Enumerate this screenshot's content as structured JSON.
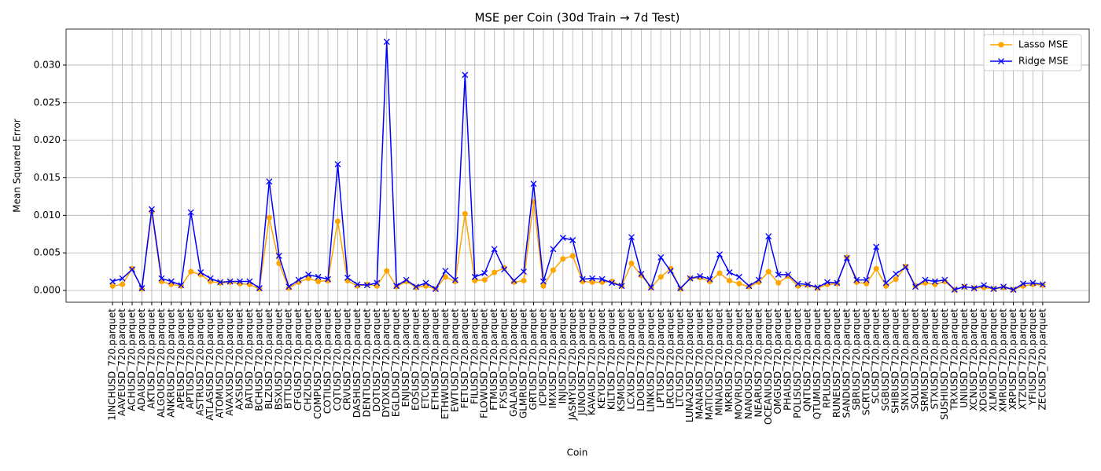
{
  "chart_data": {
    "type": "line",
    "title": "MSE per Coin (30d Train → 7d Test)",
    "x_label": "Coin",
    "y_label": "Mean Squared Error",
    "categories": [
      "1INCHUSD_720.parquet",
      "AAVEUSD_720.parquet",
      "ACHUSD_720.parquet",
      "ADAUSD_720.parquet",
      "AKTUSD_720.parquet",
      "ALGOUSD_720.parquet",
      "ANKRUSD_720.parquet",
      "APEUSD_720.parquet",
      "APTUSD_720.parquet",
      "ASTRUSD_720.parquet",
      "ATLASUSD_720.parquet",
      "ATOMUSD_720.parquet",
      "AVAXUSD_720.parquet",
      "AXSUSD_720.parquet",
      "BATUSD_720.parquet",
      "BCHUSD_720.parquet",
      "BLZUSD_720.parquet",
      "BSXUSD_720.parquet",
      "BTTUSD_720.parquet",
      "CFGUSD_720.parquet",
      "CHZUSD_720.parquet",
      "COMPUSD_720.parquet",
      "COTIUSD_720.parquet",
      "CQTUSD_720.parquet",
      "CRVUSD_720.parquet",
      "DASHUSD_720.parquet",
      "DENTUSD_720.parquet",
      "DOTUSD_720.parquet",
      "DYDXUSD_720.parquet",
      "EGLDUSD_720.parquet",
      "ENJUSD_720.parquet",
      "EOSUSD_720.parquet",
      "ETCUSD_720.parquet",
      "ETHUSD_720.parquet",
      "ETHWUSD_720.parquet",
      "EWTUSD_720.parquet",
      "FETUSD_720.parquet",
      "FILUSD_720.parquet",
      "FLOWUSD_720.parquet",
      "FTMUSD_720.parquet",
      "FXSUSD_720.parquet",
      "GALAUSD_720.parquet",
      "GLMRUSD_720.parquet",
      "GRTUSD_720.parquet",
      "ICPUSD_720.parquet",
      "IMXUSD_720.parquet",
      "INJUSD_720.parquet",
      "JASMYUSD_720.parquet",
      "JUNOUSD_720.parquet",
      "KAVAUSD_720.parquet",
      "KEYUSD_720.parquet",
      "KILTUSD_720.parquet",
      "KSMUSD_720.parquet",
      "LCXUSD_720.parquet",
      "LDOUSD_720.parquet",
      "LINKUSD_720.parquet",
      "LPTUSD_720.parquet",
      "LRCUSD_720.parquet",
      "LTCUSD_720.parquet",
      "LUNA2USD_720.parquet",
      "MANAUSD_720.parquet",
      "MATICUSD_720.parquet",
      "MINAUSD_720.parquet",
      "MKRUSD_720.parquet",
      "MOVRUSD_720.parquet",
      "NANOUSD_720.parquet",
      "NEARUSD_720.parquet",
      "OCEANUSD_720.parquet",
      "OMGUSD_720.parquet",
      "PHAUSD_720.parquet",
      "POLISUSD_720.parquet",
      "QNTUSD_720.parquet",
      "QTUMUSD_720.parquet",
      "RPLUSD_720.parquet",
      "RUNEUSD_720.parquet",
      "SANDUSD_720.parquet",
      "SBRUSD_720.parquet",
      "SCRTUSD_720.parquet",
      "SCUSD_720.parquet",
      "SGBUSD_720.parquet",
      "SHIBUSD_720.parquet",
      "SNXUSD_720.parquet",
      "SOLUSD_720.parquet",
      "SRMUSD_720.parquet",
      "STXUSD_720.parquet",
      "SUSHIUSD_720.parquet",
      "TRXUSD_720.parquet",
      "UNIUSD_720.parquet",
      "XCNUSD_720.parquet",
      "XDGUSD_720.parquet",
      "XLMUSD_720.parquet",
      "XMRUSD_720.parquet",
      "XRPUSD_720.parquet",
      "XTZUSD_720.parquet",
      "YFIUSD_720.parquet",
      "ZECUSD_720.parquet"
    ],
    "series": [
      {
        "name": "Lasso MSE",
        "color": "#ffa500",
        "marker": "o",
        "values": [
          0.0006,
          0.0008,
          0.0029,
          0.0002,
          0.0105,
          0.0012,
          0.0008,
          0.0006,
          0.0025,
          0.0021,
          0.0012,
          0.001,
          0.0011,
          0.0009,
          0.0008,
          0.0002,
          0.0097,
          0.0036,
          0.0003,
          0.0011,
          0.0016,
          0.0012,
          0.0013,
          0.0092,
          0.0013,
          0.0006,
          0.0008,
          0.0006,
          0.0026,
          0.0005,
          0.0012,
          0.0004,
          0.0006,
          0.0002,
          0.0018,
          0.0012,
          0.0102,
          0.0013,
          0.0014,
          0.0024,
          0.003,
          0.0011,
          0.0013,
          0.0118,
          0.0006,
          0.0027,
          0.0042,
          0.0046,
          0.0012,
          0.0011,
          0.0011,
          0.0012,
          0.0006,
          0.0036,
          0.002,
          0.0004,
          0.0018,
          0.0029,
          0.0002,
          0.0016,
          0.0017,
          0.0012,
          0.0023,
          0.0013,
          0.0009,
          0.0005,
          0.0011,
          0.0025,
          0.001,
          0.0019,
          0.0006,
          0.0007,
          0.0003,
          0.0008,
          0.0009,
          0.0044,
          0.0011,
          0.0009,
          0.0029,
          0.0006,
          0.0015,
          0.0032,
          0.0006,
          0.001,
          0.0008,
          0.0012,
          0.0001,
          0.0005,
          0.0003,
          0.0004,
          0.0002,
          0.0004,
          0.0001,
          0.0006,
          0.0008,
          0.0007
        ]
      },
      {
        "name": "Ridge MSE",
        "color": "#0000ff",
        "marker": "x",
        "values": [
          0.0012,
          0.0016,
          0.0028,
          0.0003,
          0.0108,
          0.0016,
          0.0012,
          0.0007,
          0.0104,
          0.0024,
          0.0016,
          0.0011,
          0.0012,
          0.0012,
          0.0012,
          0.0003,
          0.0145,
          0.0046,
          0.0005,
          0.0014,
          0.0021,
          0.0018,
          0.0015,
          0.0168,
          0.0017,
          0.0008,
          0.0007,
          0.001,
          0.0331,
          0.0006,
          0.0014,
          0.0005,
          0.001,
          0.0002,
          0.0026,
          0.0014,
          0.0287,
          0.0018,
          0.0023,
          0.0055,
          0.0028,
          0.0013,
          0.0025,
          0.0142,
          0.0012,
          0.0055,
          0.007,
          0.0067,
          0.0015,
          0.0016,
          0.0015,
          0.001,
          0.0006,
          0.0071,
          0.0022,
          0.0004,
          0.0044,
          0.0026,
          0.0003,
          0.0016,
          0.0019,
          0.0015,
          0.0048,
          0.0024,
          0.0018,
          0.0006,
          0.0014,
          0.0072,
          0.0021,
          0.0021,
          0.0009,
          0.0008,
          0.0004,
          0.0011,
          0.001,
          0.0043,
          0.0014,
          0.0014,
          0.0058,
          0.001,
          0.0022,
          0.0031,
          0.0005,
          0.0014,
          0.0012,
          0.0014,
          0.0001,
          0.0005,
          0.0003,
          0.0007,
          0.0002,
          0.0005,
          0.0001,
          0.0009,
          0.001,
          0.0008
        ]
      }
    ],
    "ylim": [
      -0.00157,
      0.0348
    ],
    "yticks": [
      {
        "value": 0,
        "label": "0.000"
      },
      0.005,
      {
        "value": 0.01,
        "label": "0.010"
      },
      0.015,
      {
        "value": 0.02,
        "label": "0.020"
      },
      0.025,
      {
        "value": 0.03,
        "label": "0.030"
      }
    ],
    "grid": true,
    "legend": "upper right"
  }
}
